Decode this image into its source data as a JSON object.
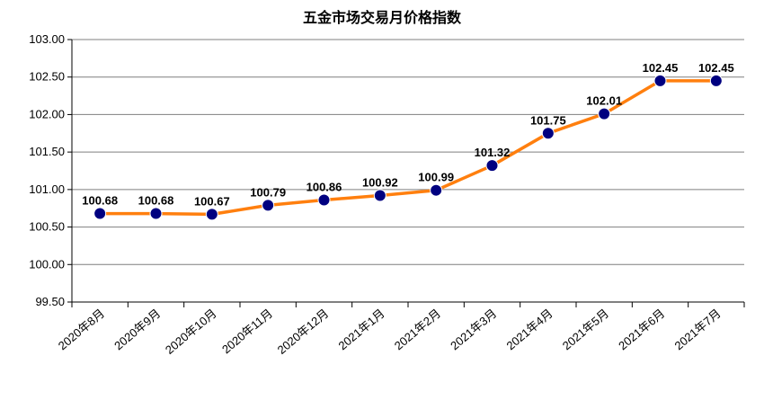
{
  "chart_data": {
    "type": "line",
    "title": "五金市场交易月价格指数",
    "xlabel": "",
    "ylabel": "",
    "categories": [
      "2020年8月",
      "2020年9月",
      "2020年10月",
      "2020年11月",
      "2020年12月",
      "2021年1月",
      "2021年2月",
      "2021年3月",
      "2021年4月",
      "2021年5月",
      "2021年6月",
      "2021年7月"
    ],
    "series": [
      {
        "values": [
          100.68,
          100.68,
          100.67,
          100.79,
          100.86,
          100.92,
          100.99,
          101.32,
          101.75,
          102.01,
          102.45,
          102.45
        ]
      }
    ],
    "value_labels": [
      "100.68",
      "100.68",
      "100.67",
      "100.79",
      "100.86",
      "100.92",
      "100.99",
      "101.32",
      "101.75",
      "102.01",
      "102.45",
      "102.45"
    ],
    "yticks": [
      "99.50",
      "100.00",
      "100.50",
      "101.00",
      "101.50",
      "102.00",
      "102.50",
      "103.00"
    ],
    "ylim": [
      99.5,
      103.0
    ],
    "grid": true,
    "legend": "none",
    "colors": {
      "line": "#ff7f0e",
      "marker": "#000080",
      "grid": "#7f7f7f",
      "axis": "#000000"
    }
  }
}
